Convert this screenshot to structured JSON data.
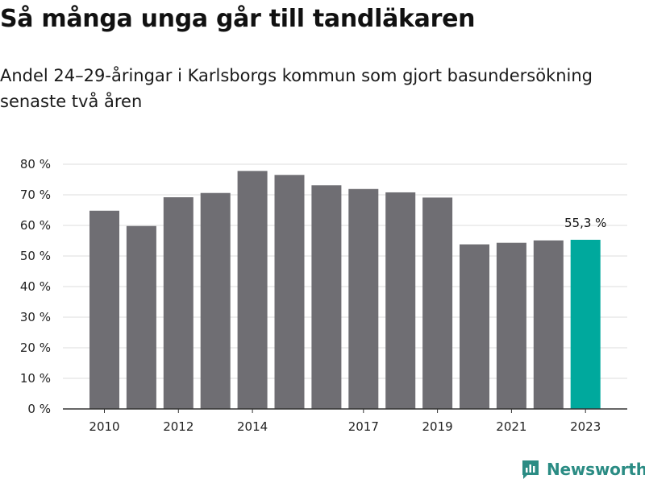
{
  "header": {
    "title": "Så många unga går till tandläkaren",
    "subtitle": "Andel 24–29-åringar i Karlsborgs kommun som gjort basundersökning senaste två åren"
  },
  "brand": {
    "name": "Newsworthy",
    "icon": "newsworthy-logo-icon",
    "color": "#2b8c84"
  },
  "colors": {
    "bar": "#6f6e73",
    "highlight": "#00a99d",
    "grid": "#dcdcdc",
    "axis": "#333333"
  },
  "chart_data": {
    "type": "bar",
    "title": "Så många unga går till tandläkaren",
    "subtitle": "Andel 24–29-åringar i Karlsborgs kommun som gjort basundersökning senaste två åren",
    "categories": [
      "2010",
      "2011",
      "2012",
      "2013",
      "2014",
      "2015",
      "2016",
      "2017",
      "2018",
      "2019",
      "2020",
      "2021",
      "2022",
      "2023"
    ],
    "values": [
      64.8,
      59.8,
      69.2,
      70.6,
      77.8,
      76.5,
      73.1,
      71.9,
      70.8,
      69.1,
      53.8,
      54.3,
      55.1,
      55.3
    ],
    "highlight": {
      "category": "2023",
      "label": "55,3 %"
    },
    "xtick_labels": [
      "2010",
      "2012",
      "2014",
      "2017",
      "2019",
      "2021",
      "2023"
    ],
    "ytick_labels": [
      "0 %",
      "10 %",
      "20 %",
      "30 %",
      "40 %",
      "50 %",
      "60 %",
      "70 %",
      "80 %"
    ],
    "ylim": [
      0,
      80
    ],
    "ytick_step": 10,
    "grid": true
  }
}
